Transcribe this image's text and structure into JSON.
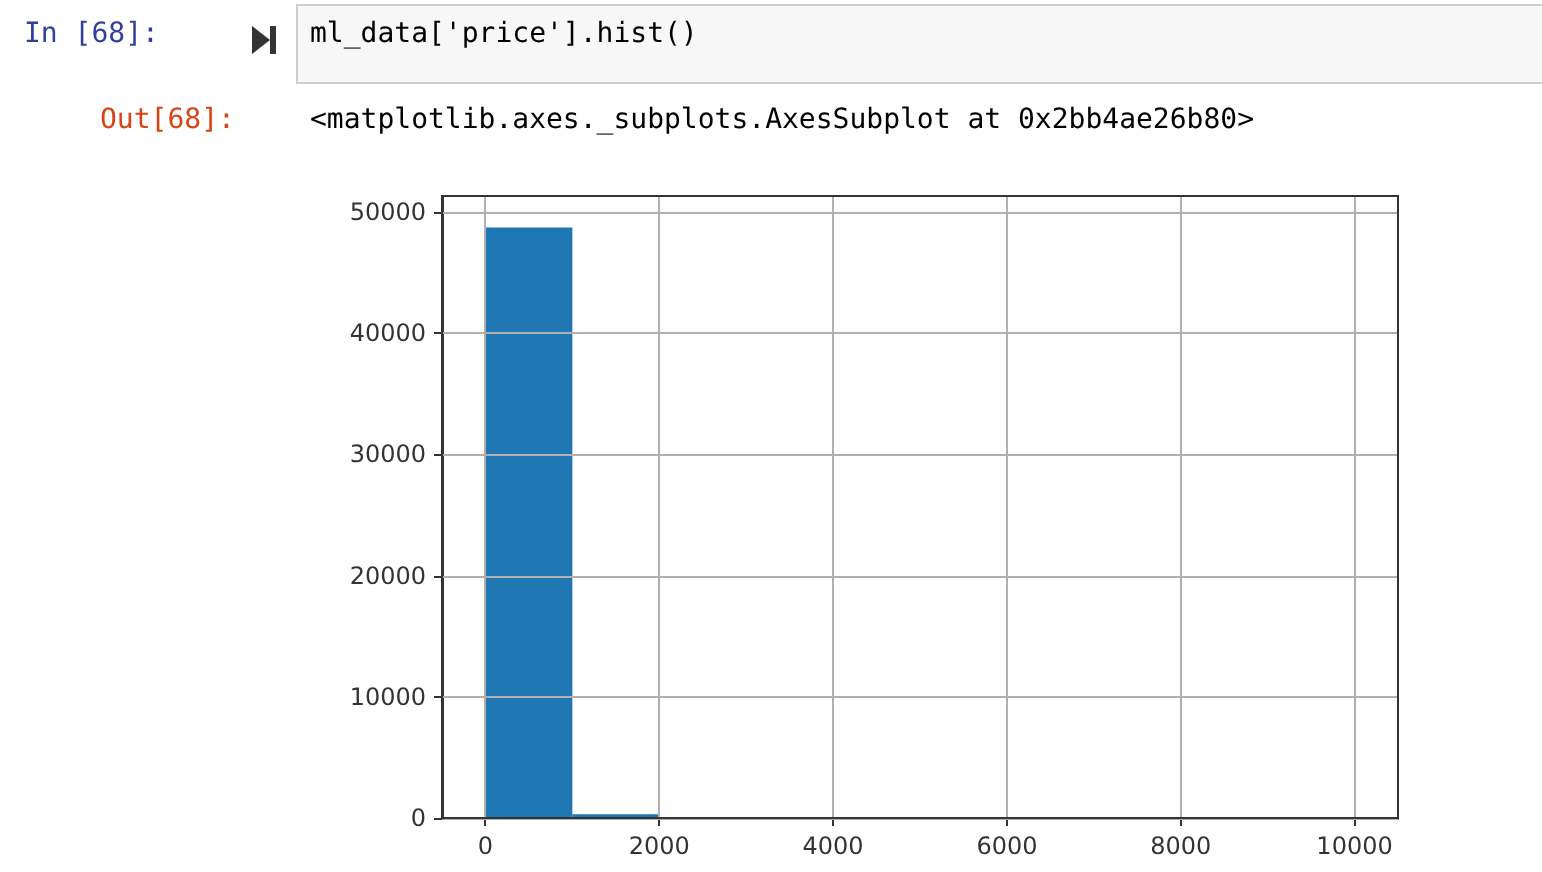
{
  "chart_data": {
    "type": "histogram",
    "annotations": [
      "In [68]:",
      "ml_data['price'].hist()",
      "Out[68]:",
      "<matplotlib.axes._subplots.AxesSubplot at 0x2bb4ae26b80>"
    ],
    "bins": [
      0,
      1000,
      2000,
      3000,
      4000,
      5000,
      6000,
      7000,
      8000,
      9000,
      10000
    ],
    "values": [
      48700,
      300,
      0,
      0,
      0,
      0,
      0,
      0,
      0,
      0
    ],
    "color": "#1f77b4",
    "xlim": [
      -500,
      10500
    ],
    "xticks": [
      0,
      2000,
      4000,
      6000,
      8000,
      10000
    ],
    "ylim": [
      0,
      51300
    ],
    "yticks": [
      0,
      10000,
      20000,
      30000,
      40000,
      50000
    ],
    "grid": true
  }
}
